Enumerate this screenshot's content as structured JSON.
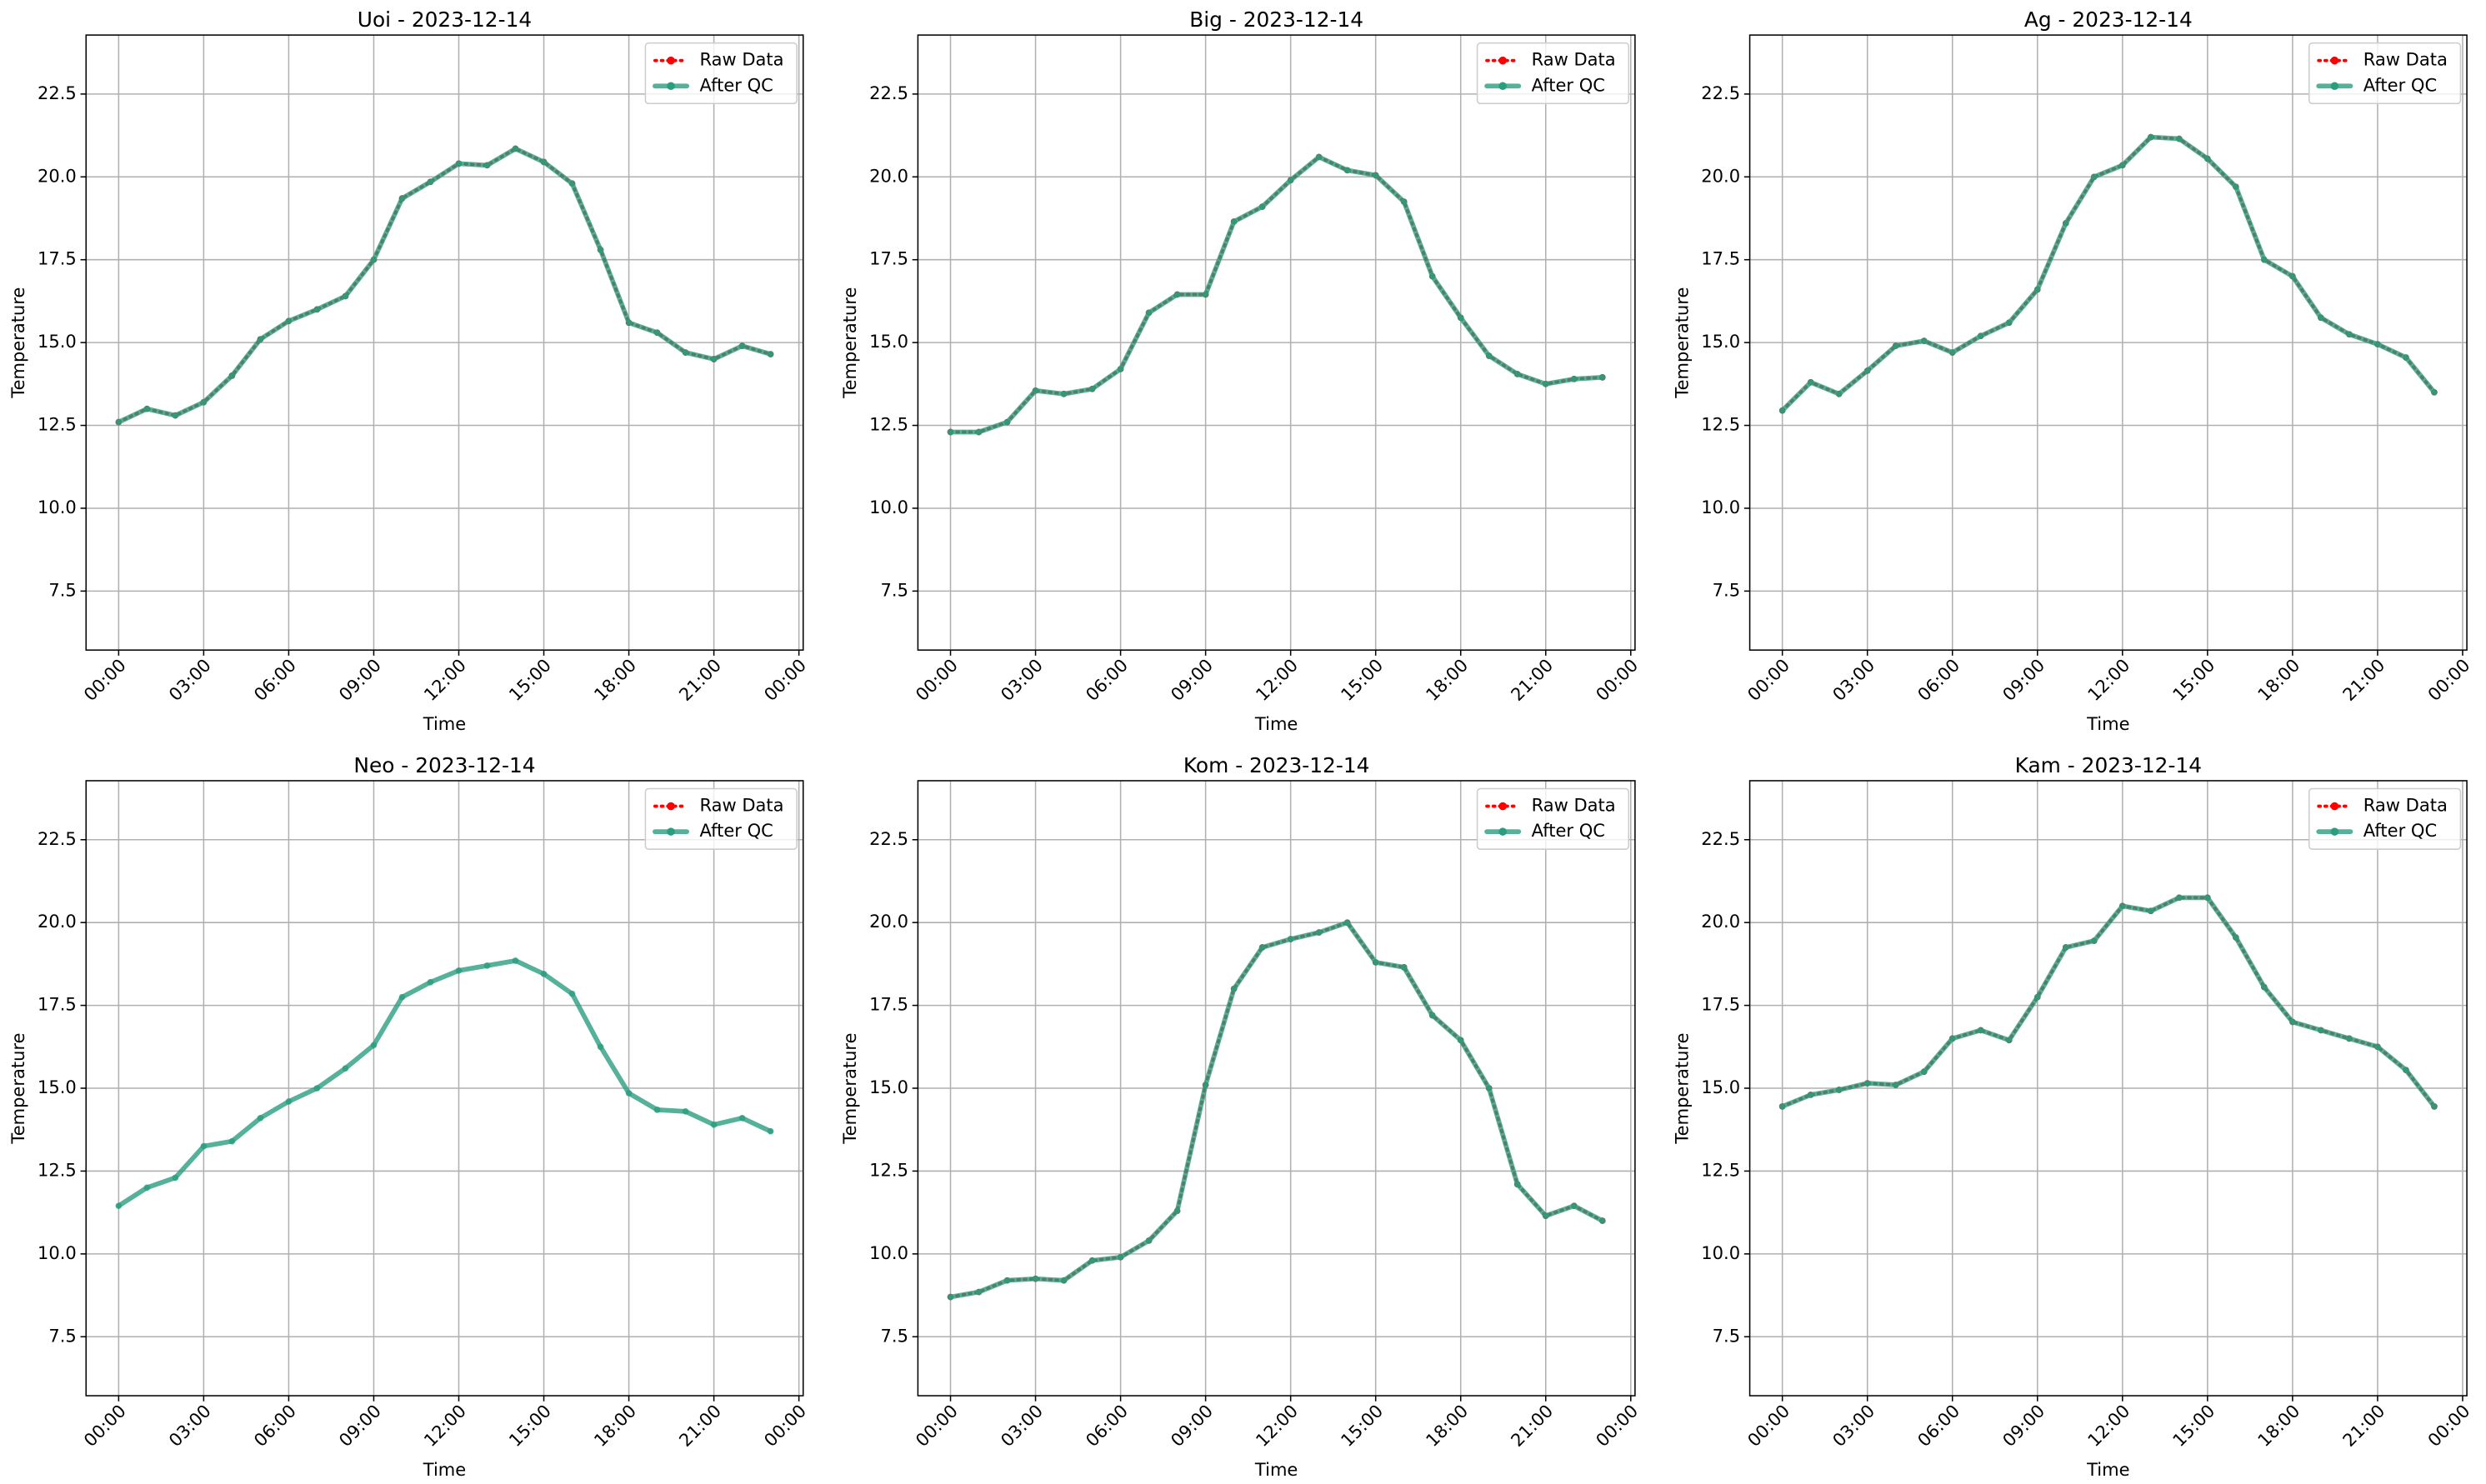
{
  "chart_data": [
    {
      "type": "line",
      "title": "Uoi - 2023-12-14",
      "xlabel": "Time",
      "ylabel": "Temperature",
      "grid": true,
      "legend": "upper right",
      "x": [
        0,
        1,
        2,
        3,
        4,
        5,
        6,
        7,
        8,
        9,
        10,
        11,
        12,
        13,
        14,
        15,
        16,
        17,
        18,
        19,
        20,
        21,
        22,
        23
      ],
      "xlim": [
        -1.15,
        24.15
      ],
      "xticks": [
        {
          "value": 0,
          "label": "00:00"
        },
        {
          "value": 3,
          "label": "03:00"
        },
        {
          "value": 6,
          "label": "06:00"
        },
        {
          "value": 9,
          "label": "09:00"
        },
        {
          "value": 12,
          "label": "12:00"
        },
        {
          "value": 15,
          "label": "15:00"
        },
        {
          "value": 18,
          "label": "18:00"
        },
        {
          "value": 21,
          "label": "21:00"
        },
        {
          "value": 24,
          "label": "00:00"
        }
      ],
      "ylim": [
        5.72,
        24.28
      ],
      "yticks": [
        7.5,
        {
          "value": 10,
          "label": "10.0"
        },
        12.5,
        {
          "value": 15,
          "label": "15.0"
        },
        17.5,
        {
          "value": 20,
          "label": "20.0"
        },
        22.5
      ],
      "series": [
        {
          "name": "Raw Data",
          "color": "#ff0000",
          "values": [
            12.6,
            13.0,
            12.8,
            13.2,
            14.0,
            15.1,
            15.65,
            16.0,
            16.4,
            17.5,
            19.35,
            19.85,
            20.4,
            20.35,
            20.85,
            20.45,
            19.8,
            17.8,
            15.6,
            15.3,
            14.7,
            14.5,
            14.9,
            14.65
          ]
        },
        {
          "name": "After QC",
          "color": "#2a9d7f",
          "values": [
            12.6,
            13.0,
            12.8,
            13.2,
            14.0,
            15.1,
            15.65,
            16.0,
            16.4,
            17.5,
            19.35,
            19.85,
            20.4,
            20.35,
            20.85,
            20.45,
            19.8,
            17.8,
            15.6,
            15.3,
            14.7,
            14.5,
            14.9,
            14.65
          ]
        }
      ]
    },
    {
      "type": "line",
      "title": "Big - 2023-12-14",
      "xlabel": "Time",
      "ylabel": "Temperature",
      "grid": true,
      "legend": "upper right",
      "x": [
        0,
        1,
        2,
        3,
        4,
        5,
        6,
        7,
        8,
        9,
        10,
        11,
        12,
        13,
        14,
        15,
        16,
        17,
        18,
        19,
        20,
        21,
        22,
        23
      ],
      "xlim": [
        -1.15,
        24.15
      ],
      "xticks": [
        {
          "value": 0,
          "label": "00:00"
        },
        {
          "value": 3,
          "label": "03:00"
        },
        {
          "value": 6,
          "label": "06:00"
        },
        {
          "value": 9,
          "label": "09:00"
        },
        {
          "value": 12,
          "label": "12:00"
        },
        {
          "value": 15,
          "label": "15:00"
        },
        {
          "value": 18,
          "label": "18:00"
        },
        {
          "value": 21,
          "label": "21:00"
        },
        {
          "value": 24,
          "label": "00:00"
        }
      ],
      "ylim": [
        5.72,
        24.28
      ],
      "yticks": [
        7.5,
        {
          "value": 10,
          "label": "10.0"
        },
        12.5,
        {
          "value": 15,
          "label": "15.0"
        },
        17.5,
        {
          "value": 20,
          "label": "20.0"
        },
        22.5
      ],
      "series": [
        {
          "name": "Raw Data",
          "color": "#ff0000",
          "values": [
            12.3,
            12.3,
            12.6,
            13.55,
            13.45,
            13.6,
            14.2,
            15.9,
            16.45,
            16.45,
            18.65,
            19.1,
            19.9,
            20.6,
            20.2,
            20.05,
            19.25,
            17.0,
            15.75,
            14.6,
            14.05,
            13.75,
            13.9,
            13.95
          ]
        },
        {
          "name": "After QC",
          "color": "#2a9d7f",
          "values": [
            12.3,
            12.3,
            12.6,
            13.55,
            13.45,
            13.6,
            14.2,
            15.9,
            16.45,
            16.45,
            18.65,
            19.1,
            19.9,
            20.6,
            20.2,
            20.05,
            19.25,
            17.0,
            15.75,
            14.6,
            14.05,
            13.75,
            13.9,
            13.95
          ]
        }
      ]
    },
    {
      "type": "line",
      "title": "Ag - 2023-12-14",
      "xlabel": "Time",
      "ylabel": "Temperature",
      "grid": true,
      "legend": "upper right",
      "x": [
        0,
        1,
        2,
        3,
        4,
        5,
        6,
        7,
        8,
        9,
        10,
        11,
        12,
        13,
        14,
        15,
        16,
        17,
        18,
        19,
        20,
        21,
        22,
        23
      ],
      "xlim": [
        -1.15,
        24.15
      ],
      "xticks": [
        {
          "value": 0,
          "label": "00:00"
        },
        {
          "value": 3,
          "label": "03:00"
        },
        {
          "value": 6,
          "label": "06:00"
        },
        {
          "value": 9,
          "label": "09:00"
        },
        {
          "value": 12,
          "label": "12:00"
        },
        {
          "value": 15,
          "label": "15:00"
        },
        {
          "value": 18,
          "label": "18:00"
        },
        {
          "value": 21,
          "label": "21:00"
        },
        {
          "value": 24,
          "label": "00:00"
        }
      ],
      "ylim": [
        5.72,
        24.28
      ],
      "yticks": [
        7.5,
        {
          "value": 10,
          "label": "10.0"
        },
        12.5,
        {
          "value": 15,
          "label": "15.0"
        },
        17.5,
        {
          "value": 20,
          "label": "20.0"
        },
        22.5
      ],
      "series": [
        {
          "name": "Raw Data",
          "color": "#ff0000",
          "values": [
            12.95,
            13.8,
            13.45,
            14.15,
            14.9,
            15.05,
            14.7,
            15.2,
            15.6,
            16.6,
            18.6,
            20.0,
            20.35,
            21.2,
            21.15,
            20.55,
            19.7,
            17.5,
            17.0,
            15.75,
            15.25,
            14.95,
            14.55,
            13.5
          ]
        },
        {
          "name": "After QC",
          "color": "#2a9d7f",
          "values": [
            12.95,
            13.8,
            13.45,
            14.15,
            14.9,
            15.05,
            14.7,
            15.2,
            15.6,
            16.6,
            18.6,
            20.0,
            20.35,
            21.2,
            21.15,
            20.55,
            19.7,
            17.5,
            17.0,
            15.75,
            15.25,
            14.95,
            14.55,
            13.5
          ]
        }
      ]
    },
    {
      "type": "line",
      "title": "Neo - 2023-12-14",
      "xlabel": "Time",
      "ylabel": "Temperature",
      "grid": true,
      "legend": "upper right",
      "x": [
        0,
        1,
        2,
        3,
        4,
        5,
        6,
        7,
        8,
        9,
        10,
        11,
        12,
        13,
        14,
        15,
        16,
        17,
        18,
        19,
        20,
        21,
        22,
        23
      ],
      "xlim": [
        -1.15,
        24.15
      ],
      "xticks": [
        {
          "value": 0,
          "label": "00:00"
        },
        {
          "value": 3,
          "label": "03:00"
        },
        {
          "value": 6,
          "label": "06:00"
        },
        {
          "value": 9,
          "label": "09:00"
        },
        {
          "value": 12,
          "label": "12:00"
        },
        {
          "value": 15,
          "label": "15:00"
        },
        {
          "value": 18,
          "label": "18:00"
        },
        {
          "value": 21,
          "label": "21:00"
        },
        {
          "value": 24,
          "label": "00:00"
        }
      ],
      "ylim": [
        5.72,
        24.28
      ],
      "yticks": [
        7.5,
        {
          "value": 10,
          "label": "10.0"
        },
        12.5,
        {
          "value": 15,
          "label": "15.0"
        },
        17.5,
        {
          "value": 20,
          "label": "20.0"
        },
        22.5
      ],
      "series": [
        {
          "name": "Raw Data",
          "color": "#ff0000",
          "values": [
            null,
            null,
            null,
            null,
            null,
            null,
            null,
            null,
            null,
            null,
            null,
            null,
            null,
            null,
            null,
            null,
            null,
            null,
            null,
            null,
            null,
            null,
            null,
            null
          ]
        },
        {
          "name": "After QC",
          "color": "#2a9d7f",
          "values": [
            11.45,
            12.0,
            12.3,
            13.25,
            13.4,
            14.1,
            14.6,
            15.0,
            15.6,
            16.3,
            17.75,
            18.2,
            18.55,
            18.7,
            18.85,
            18.45,
            17.85,
            16.25,
            14.85,
            14.35,
            14.3,
            13.9,
            14.1,
            13.7
          ]
        }
      ]
    },
    {
      "type": "line",
      "title": "Kom - 2023-12-14",
      "xlabel": "Time",
      "ylabel": "Temperature",
      "grid": true,
      "legend": "upper right",
      "x": [
        0,
        1,
        2,
        3,
        4,
        5,
        6,
        7,
        8,
        9,
        10,
        11,
        12,
        13,
        14,
        15,
        16,
        17,
        18,
        19,
        20,
        21,
        22,
        23
      ],
      "xlim": [
        -1.15,
        24.15
      ],
      "xticks": [
        {
          "value": 0,
          "label": "00:00"
        },
        {
          "value": 3,
          "label": "03:00"
        },
        {
          "value": 6,
          "label": "06:00"
        },
        {
          "value": 9,
          "label": "09:00"
        },
        {
          "value": 12,
          "label": "12:00"
        },
        {
          "value": 15,
          "label": "15:00"
        },
        {
          "value": 18,
          "label": "18:00"
        },
        {
          "value": 21,
          "label": "21:00"
        },
        {
          "value": 24,
          "label": "00:00"
        }
      ],
      "ylim": [
        5.72,
        24.28
      ],
      "yticks": [
        7.5,
        {
          "value": 10,
          "label": "10.0"
        },
        12.5,
        {
          "value": 15,
          "label": "15.0"
        },
        17.5,
        {
          "value": 20,
          "label": "20.0"
        },
        22.5
      ],
      "series": [
        {
          "name": "Raw Data",
          "color": "#ff0000",
          "values": [
            8.7,
            8.85,
            9.2,
            9.25,
            9.2,
            9.8,
            9.9,
            10.4,
            11.3,
            15.1,
            18.0,
            19.25,
            19.5,
            19.7,
            20.0,
            18.8,
            18.65,
            17.2,
            16.45,
            15.0,
            12.1,
            11.15,
            11.45,
            11.0
          ]
        },
        {
          "name": "After QC",
          "color": "#2a9d7f",
          "values": [
            8.7,
            8.85,
            9.2,
            9.25,
            9.2,
            9.8,
            9.9,
            10.4,
            11.3,
            15.1,
            18.0,
            19.25,
            19.5,
            19.7,
            20.0,
            18.8,
            18.65,
            17.2,
            16.45,
            15.0,
            12.1,
            11.15,
            11.45,
            11.0
          ]
        }
      ]
    },
    {
      "type": "line",
      "title": "Kam - 2023-12-14",
      "xlabel": "Time",
      "ylabel": "Temperature",
      "grid": true,
      "legend": "upper right",
      "x": [
        0,
        1,
        2,
        3,
        4,
        5,
        6,
        7,
        8,
        9,
        10,
        11,
        12,
        13,
        14,
        15,
        16,
        17,
        18,
        19,
        20,
        21,
        22,
        23
      ],
      "xlim": [
        -1.15,
        24.15
      ],
      "xticks": [
        {
          "value": 0,
          "label": "00:00"
        },
        {
          "value": 3,
          "label": "03:00"
        },
        {
          "value": 6,
          "label": "06:00"
        },
        {
          "value": 9,
          "label": "09:00"
        },
        {
          "value": 12,
          "label": "12:00"
        },
        {
          "value": 15,
          "label": "15:00"
        },
        {
          "value": 18,
          "label": "18:00"
        },
        {
          "value": 21,
          "label": "21:00"
        },
        {
          "value": 24,
          "label": "00:00"
        }
      ],
      "ylim": [
        5.72,
        24.28
      ],
      "yticks": [
        7.5,
        {
          "value": 10,
          "label": "10.0"
        },
        12.5,
        {
          "value": 15,
          "label": "15.0"
        },
        17.5,
        {
          "value": 20,
          "label": "20.0"
        },
        22.5
      ],
      "series": [
        {
          "name": "Raw Data",
          "color": "#ff0000",
          "values": [
            14.45,
            14.8,
            14.95,
            15.15,
            15.1,
            15.5,
            16.5,
            16.75,
            16.45,
            17.75,
            19.25,
            19.45,
            20.5,
            20.35,
            20.75,
            20.75,
            19.55,
            18.05,
            17.0,
            16.75,
            16.5,
            16.25,
            15.55,
            14.45
          ]
        },
        {
          "name": "After QC",
          "color": "#2a9d7f",
          "values": [
            14.45,
            14.8,
            14.95,
            15.15,
            15.1,
            15.5,
            16.5,
            16.75,
            16.45,
            17.75,
            19.25,
            19.45,
            20.5,
            20.35,
            20.75,
            20.75,
            19.55,
            18.05,
            17.0,
            16.75,
            16.5,
            16.25,
            15.55,
            14.45
          ]
        }
      ]
    }
  ]
}
